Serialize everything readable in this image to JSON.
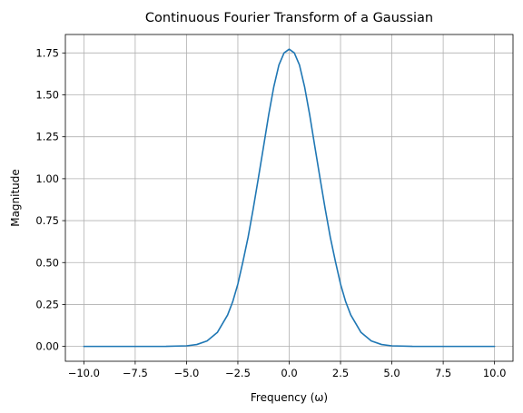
{
  "chart_data": {
    "type": "line",
    "title": "Continuous Fourier Transform of a Gaussian",
    "xlabel": "Frequency (ω)",
    "ylabel": "Magnitude",
    "xlim": [
      -10.9,
      10.9
    ],
    "ylim": [
      -0.0886,
      1.86
    ],
    "xticks": [
      -10.0,
      -7.5,
      -5.0,
      -2.5,
      0.0,
      2.5,
      5.0,
      7.5,
      10.0
    ],
    "xtick_labels": [
      "−10.0",
      "−7.5",
      "−5.0",
      "−2.5",
      "0.0",
      "2.5",
      "5.0",
      "7.5",
      "10.0"
    ],
    "yticks": [
      0.0,
      0.25,
      0.5,
      0.75,
      1.0,
      1.25,
      1.5,
      1.75
    ],
    "ytick_labels": [
      "0.00",
      "0.25",
      "0.50",
      "0.75",
      "1.00",
      "1.25",
      "1.50",
      "1.75"
    ],
    "grid": true,
    "series": [
      {
        "color": "#1f77b4",
        "x": [
          -10,
          -9,
          -8,
          -7,
          -6,
          -5,
          -4.5,
          -4,
          -3.5,
          -3,
          -2.75,
          -2.5,
          -2.25,
          -2,
          -1.75,
          -1.5,
          -1.25,
          -1,
          -0.75,
          -0.5,
          -0.25,
          0,
          0.25,
          0.5,
          0.75,
          1,
          1.25,
          1.5,
          1.75,
          2,
          2.25,
          2.5,
          2.75,
          3,
          3.5,
          4,
          4.5,
          5,
          6,
          7,
          8,
          9,
          10
        ],
        "y": [
          0.0,
          0.0,
          0.0,
          0.0,
          0.0002,
          0.0034,
          0.0112,
          0.0325,
          0.083,
          0.187,
          0.2668,
          0.3719,
          0.5071,
          0.652,
          0.822,
          1.005,
          1.191,
          1.38,
          1.548,
          1.678,
          1.75,
          1.7725,
          1.75,
          1.678,
          1.548,
          1.38,
          1.191,
          1.005,
          0.822,
          0.652,
          0.5071,
          0.3719,
          0.2668,
          0.187,
          0.083,
          0.0325,
          0.0112,
          0.0034,
          0.0002,
          0.0,
          0.0,
          0.0,
          0.0
        ]
      }
    ]
  }
}
